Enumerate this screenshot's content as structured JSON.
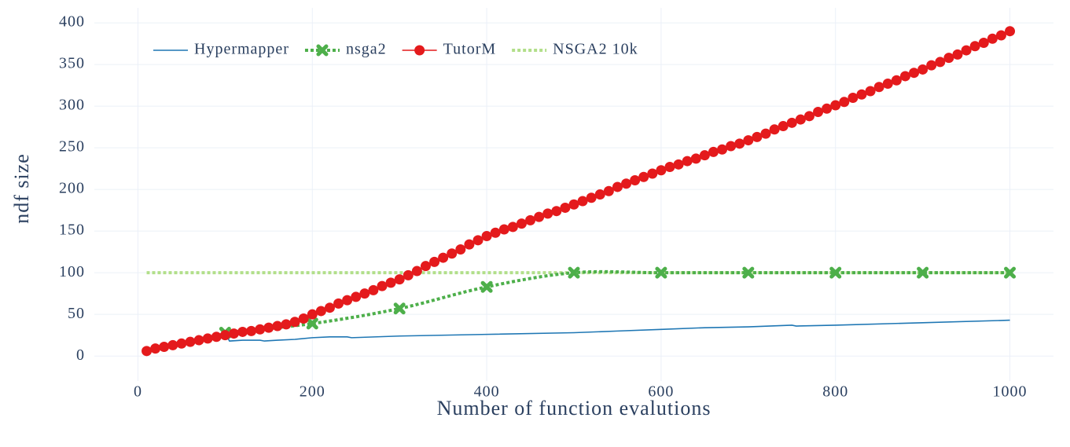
{
  "chart_data": {
    "type": "line",
    "xlabel": "Number of function evalutions",
    "ylabel": "ndf size",
    "xlim": [
      -50,
      1050
    ],
    "xticks": [
      0,
      200,
      400,
      600,
      800,
      1000
    ],
    "ylim": [
      -30,
      418
    ],
    "yticks": [
      0,
      50,
      100,
      150,
      200,
      250,
      300,
      350,
      400
    ],
    "grid": true,
    "legend": "top-left",
    "series": [
      {
        "name": "Hypermapper",
        "color": "#1f77b4",
        "dash": "solid",
        "marker": "none",
        "x": [
          10,
          100,
          105,
          120,
          140,
          145,
          160,
          180,
          200,
          220,
          240,
          245,
          300,
          400,
          500,
          550,
          600,
          650,
          700,
          750,
          755,
          800,
          900,
          1000
        ],
        "values": [
          6,
          28,
          18,
          19,
          19,
          18,
          19,
          20,
          22,
          23,
          23,
          22,
          24,
          26,
          28,
          30,
          32,
          34,
          35,
          37,
          36,
          37,
          40,
          43
        ]
      },
      {
        "name": "nsga2",
        "color": "#4daf4a",
        "dash": "dot",
        "marker": "x",
        "x": [
          100,
          200,
          300,
          400,
          500,
          600,
          700,
          800,
          900,
          1000
        ],
        "values": [
          28,
          39,
          57,
          83,
          100,
          100,
          100,
          100,
          100,
          100
        ]
      },
      {
        "name": "TutorM",
        "color": "#e41a1c",
        "dash": "solid",
        "marker": "circle",
        "x": [
          10,
          20,
          30,
          40,
          50,
          60,
          70,
          80,
          90,
          100,
          110,
          120,
          130,
          140,
          150,
          160,
          170,
          180,
          190,
          200,
          210,
          220,
          230,
          240,
          250,
          260,
          270,
          280,
          290,
          300,
          310,
          320,
          330,
          340,
          350,
          360,
          370,
          380,
          390,
          400,
          410,
          420,
          430,
          440,
          450,
          460,
          470,
          480,
          490,
          500,
          510,
          520,
          530,
          540,
          550,
          560,
          570,
          580,
          590,
          600,
          610,
          620,
          630,
          640,
          650,
          660,
          670,
          680,
          690,
          700,
          710,
          720,
          730,
          740,
          750,
          760,
          770,
          780,
          790,
          800,
          810,
          820,
          830,
          840,
          850,
          860,
          870,
          880,
          890,
          900,
          910,
          920,
          930,
          940,
          950,
          960,
          970,
          980,
          990,
          1000
        ],
        "values": [
          6,
          9,
          11,
          13,
          15,
          17,
          19,
          21,
          23,
          25,
          27,
          29,
          30,
          32,
          34,
          36,
          38,
          41,
          45,
          50,
          54,
          58,
          63,
          67,
          71,
          75,
          79,
          84,
          88,
          92,
          97,
          102,
          108,
          113,
          118,
          123,
          128,
          134,
          139,
          144,
          148,
          152,
          155,
          159,
          163,
          167,
          171,
          174,
          178,
          182,
          186,
          190,
          194,
          198,
          203,
          207,
          211,
          215,
          219,
          223,
          227,
          230,
          234,
          237,
          241,
          245,
          248,
          252,
          255,
          259,
          263,
          267,
          272,
          276,
          280,
          284,
          288,
          293,
          297,
          301,
          305,
          310,
          314,
          318,
          323,
          327,
          331,
          336,
          340,
          344,
          349,
          353,
          358,
          362,
          367,
          372,
          376,
          381,
          385,
          390
        ]
      },
      {
        "name": "NSGA2 10k",
        "color": "#b2df8a",
        "dash": "dot",
        "marker": "none",
        "x": [
          10,
          1000
        ],
        "values": [
          100,
          100
        ]
      }
    ]
  }
}
